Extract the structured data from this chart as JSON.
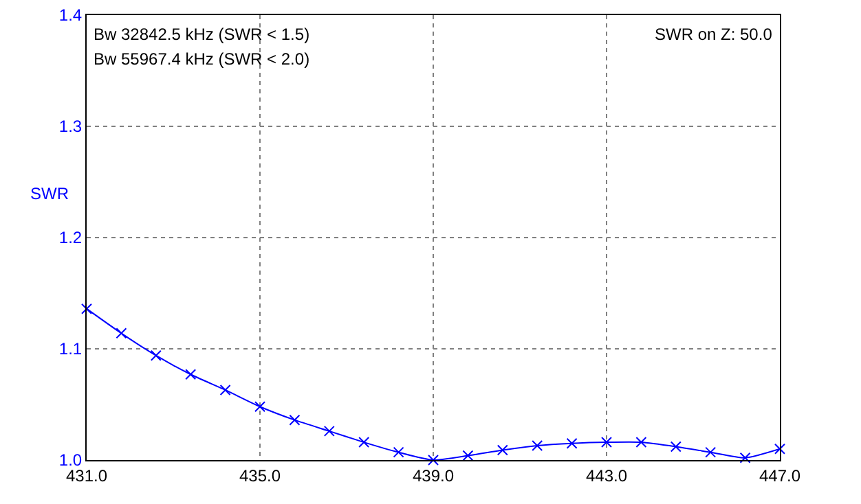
{
  "chart_data": {
    "type": "line",
    "ylabel": "SWR",
    "annotations": [
      "Bw 32842.5 kHz (SWR < 1.5)",
      "Bw 55967.4 kHz (SWR < 2.0)",
      "SWR on Z: 50.0"
    ],
    "x": [
      431,
      431.8,
      432.6,
      433.4,
      434.2,
      435,
      435.8,
      436.6,
      437.4,
      438.2,
      439,
      439.8,
      440.6,
      441.4,
      442.2,
      443,
      443.8,
      444.6,
      445.4,
      446.2,
      447
    ],
    "series": [
      {
        "color": "#0000ff",
        "values": [
          1.136,
          1.114,
          1.094,
          1.077,
          1.063,
          1.048,
          1.036,
          1.026,
          1.016,
          1.007,
          1.0,
          1.004,
          1.009,
          1.013,
          1.015,
          1.016,
          1.016,
          1.012,
          1.007,
          1.002,
          1.01
        ]
      }
    ],
    "xlim": [
      431,
      447
    ],
    "xticks": [
      {
        "value": 431,
        "label": "431.0"
      },
      {
        "value": 435,
        "label": "435.0"
      },
      {
        "value": 439,
        "label": "439.0"
      },
      {
        "value": 443,
        "label": "443.0"
      },
      {
        "value": 447,
        "label": "447.0"
      }
    ],
    "ylim": [
      1.0,
      1.4
    ],
    "yticks": [
      {
        "value": 1.0,
        "label": "1.0"
      },
      {
        "value": 1.1,
        "label": "1.1"
      },
      {
        "value": 1.2,
        "label": "1.2"
      },
      {
        "value": 1.3,
        "label": "1.3"
      },
      {
        "value": 1.4,
        "label": "1.4"
      }
    ],
    "grid": true,
    "marker": "cross",
    "line_style": "solid"
  }
}
